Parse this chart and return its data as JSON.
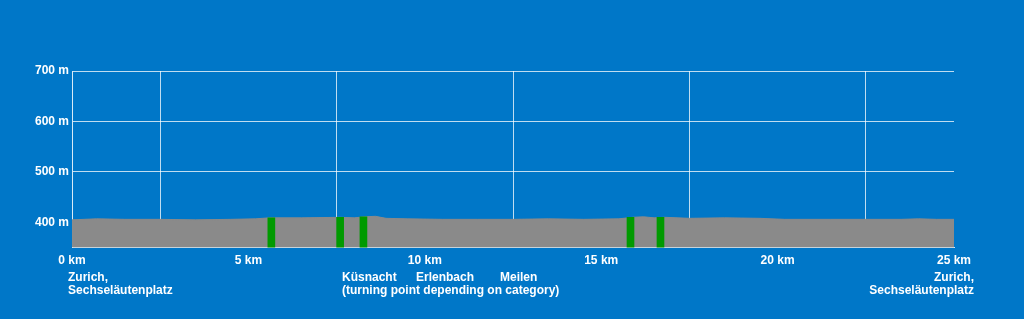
{
  "chart_data": {
    "type": "area",
    "xlim": [
      0,
      25
    ],
    "ylim": [
      350,
      700
    ],
    "xticks": [
      {
        "value": 0,
        "label": "0 km"
      },
      {
        "value": 5,
        "label": "5 km"
      },
      {
        "value": 10,
        "label": "10 km"
      },
      {
        "value": 15,
        "label": "15 km"
      },
      {
        "value": 20,
        "label": "20 km"
      },
      {
        "value": 25,
        "label": "25 km"
      }
    ],
    "yticks": [
      {
        "value": 400,
        "label": "400 m"
      },
      {
        "value": 500,
        "label": "500 m"
      },
      {
        "value": 600,
        "label": "600 m"
      },
      {
        "value": 700,
        "label": "700 m"
      }
    ],
    "grid": true,
    "legend": false,
    "series": [
      {
        "color": "#8a8a8a",
        "x": [
          0,
          0.7,
          1.5,
          2.5,
          3.5,
          4.5,
          5.2,
          5.6,
          6.5,
          7.6,
          8.0,
          8.3,
          8.6,
          8.9,
          9.5,
          10.5,
          11.5,
          12.5,
          13.5,
          14.5,
          15.5,
          15.9,
          16.2,
          16.5,
          16.8,
          17.5,
          18.5,
          19.5,
          20.2,
          21.5,
          22.5,
          23.5,
          24.0,
          24.5,
          25
        ],
        "values": [
          405,
          407,
          406,
          406,
          405,
          406,
          407,
          409,
          409,
          410,
          409,
          411,
          412,
          408,
          407,
          406,
          406,
          406,
          407,
          406,
          407,
          410,
          411,
          409,
          410,
          408,
          409,
          408,
          406,
          406,
          406,
          406,
          407,
          406,
          406
        ]
      },
      {
        "type": "bar",
        "color": "#009a00",
        "x": [
          5.65,
          7.6,
          8.26,
          15.83,
          16.68
        ],
        "values": [
          409,
          410,
          411,
          410,
          410
        ]
      }
    ],
    "annotations": [
      "Zurich,\nSechseläutenplatz",
      "Küsnacht",
      "(turning point depending on category)",
      "Erlenbach",
      "Meilen",
      "Zurich,\nSechseläutenplatz"
    ]
  }
}
